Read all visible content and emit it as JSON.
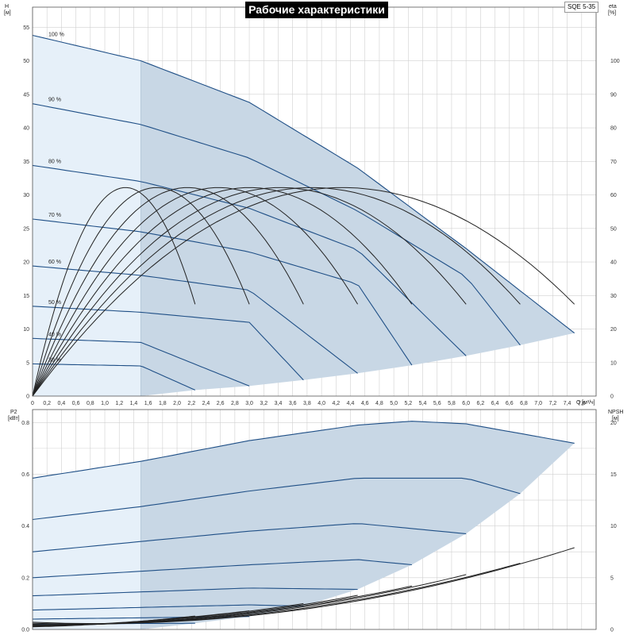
{
  "title": "Рабочие характеристики",
  "model": "SQE 5-35",
  "axes": {
    "h_label": "H",
    "h_unit": "[м]",
    "eta_label": "eta",
    "eta_unit": "[%]",
    "q_label": "Q",
    "q_unit": "[м³/ч]",
    "p2_label": "P2",
    "p2_unit": "[кВт]",
    "npsh_label": "NPSH",
    "npsh_unit": "[м]"
  },
  "colors": {
    "curve": "#1f4f86",
    "envelope": "#c8d7e5",
    "lowflow": "#e6f0f9",
    "grid": "#d0d0d0",
    "eta_curve": "#222222"
  },
  "chart_data": [
    {
      "type": "line",
      "name": "QH",
      "xlabel": "Q [м³/ч]",
      "ylabel": "H [м]",
      "y2label": "eta [%]",
      "xlim": [
        0,
        7.8
      ],
      "ylim": [
        0,
        58
      ],
      "y2lim": [
        0,
        116
      ],
      "x_ticks": [
        "0",
        "0,2",
        "0,4",
        "0,6",
        "0,8",
        "1,0",
        "1,2",
        "1,4",
        "1,6",
        "1,8",
        "2,0",
        "2,2",
        "2,4",
        "2,6",
        "2,8",
        "3,0",
        "3,2",
        "3,4",
        "3,6",
        "3,8",
        "4,0",
        "4,2",
        "4,4",
        "4,6",
        "4,8",
        "5,0",
        "5,2",
        "5,4",
        "5,6",
        "5,8",
        "6,0",
        "6,2",
        "6,4",
        "6,6",
        "6,8",
        "7,0",
        "7,2",
        "7,4",
        "7,6"
      ],
      "y_ticks": [
        "0",
        "5",
        "10",
        "15",
        "20",
        "25",
        "30",
        "35",
        "40",
        "45",
        "50",
        "55"
      ],
      "y2_ticks": [
        "0",
        "10",
        "20",
        "30",
        "40",
        "50",
        "60",
        "70",
        "80",
        "90",
        "100"
      ],
      "grid": true,
      "series": [
        {
          "name": "100 %",
          "x": [
            0,
            1.5,
            3.0,
            4.5,
            6.0,
            7.5
          ],
          "y": [
            53.8,
            50.0,
            43.8,
            34.0,
            22.0,
            9.4
          ]
        },
        {
          "name": "90 %",
          "x": [
            0,
            1.5,
            3.0,
            4.5,
            6.0,
            6.75
          ],
          "y": [
            43.6,
            40.5,
            35.5,
            27.6,
            17.8,
            7.6
          ]
        },
        {
          "name": "80 %",
          "x": [
            0,
            1.5,
            3.0,
            4.5,
            6.0
          ],
          "y": [
            34.4,
            32.0,
            28.0,
            21.8,
            6.0
          ]
        },
        {
          "name": "70 %",
          "x": [
            0,
            1.5,
            3.0,
            4.5,
            5.25
          ],
          "y": [
            26.4,
            24.5,
            21.5,
            16.7,
            4.6
          ]
        },
        {
          "name": "60 %",
          "x": [
            0,
            1.5,
            3.0,
            4.5
          ],
          "y": [
            19.4,
            18.0,
            15.8,
            3.4
          ]
        },
        {
          "name": "50 %",
          "x": [
            0,
            1.5,
            3.0,
            3.75
          ],
          "y": [
            13.4,
            12.5,
            11.0,
            2.4
          ]
        },
        {
          "name": "40 %",
          "x": [
            0,
            1.5,
            3.0
          ],
          "y": [
            8.6,
            8.0,
            1.5
          ]
        },
        {
          "name": "30 %",
          "x": [
            0,
            1.5,
            2.25
          ],
          "y": [
            4.8,
            4.5,
            0.9
          ]
        }
      ],
      "eta_series": [
        {
          "n": "100 %",
          "x": [
            0,
            3.75,
            7.5
          ],
          "y": [
            0,
            61.2,
            27.4
          ]
        },
        {
          "n": "90 %",
          "x": [
            0,
            3.375,
            6.75
          ],
          "y": [
            0,
            61.2,
            27.4
          ]
        },
        {
          "n": "80 %",
          "x": [
            0,
            3.0,
            6.0
          ],
          "y": [
            0,
            61.2,
            27.4
          ]
        },
        {
          "n": "70 %",
          "x": [
            0,
            2.625,
            5.25
          ],
          "y": [
            0,
            61.2,
            27.4
          ]
        },
        {
          "n": "60 %",
          "x": [
            0,
            2.25,
            4.5
          ],
          "y": [
            0,
            61.2,
            27.4
          ]
        },
        {
          "n": "50 %",
          "x": [
            0,
            1.875,
            3.75
          ],
          "y": [
            0,
            61.2,
            27.4
          ]
        },
        {
          "n": "40 %",
          "x": [
            0,
            1.5,
            3.0
          ],
          "y": [
            0,
            61.2,
            27.4
          ]
        },
        {
          "n": "30 %",
          "x": [
            0,
            1.125,
            2.25
          ],
          "y": [
            0,
            61.2,
            27.4
          ]
        }
      ],
      "lowflow_limit_q": 1.5
    },
    {
      "type": "line",
      "name": "P2/NPSH",
      "xlabel": "Q [м³/ч]",
      "ylabel": "P2 [кВт]",
      "y2label": "NPSH [м]",
      "xlim": [
        0,
        7.8
      ],
      "ylim": [
        0,
        0.85
      ],
      "y2lim": [
        0,
        21.25
      ],
      "y_ticks": [
        "0.0",
        "0.2",
        "0.4",
        "0.6",
        "0.8"
      ],
      "y2_ticks": [
        "0",
        "5",
        "10",
        "15",
        "20"
      ],
      "grid": true,
      "series": [
        {
          "name": "100 %",
          "x": [
            0,
            1.5,
            3.0,
            4.5,
            5.25,
            6.0,
            7.5
          ],
          "y": [
            0.585,
            0.65,
            0.73,
            0.79,
            0.805,
            0.795,
            0.72
          ]
        },
        {
          "name": "90 %",
          "x": [
            0,
            1.5,
            3.0,
            4.5,
            6.0,
            6.75
          ],
          "y": [
            0.425,
            0.475,
            0.535,
            0.585,
            0.585,
            0.525
          ]
        },
        {
          "name": "80 %",
          "x": [
            0,
            1.5,
            3.0,
            4.5,
            6.0
          ],
          "y": [
            0.3,
            0.34,
            0.38,
            0.41,
            0.37
          ]
        },
        {
          "name": "70 %",
          "x": [
            0,
            1.5,
            3.0,
            4.5,
            5.25
          ],
          "y": [
            0.2,
            0.225,
            0.25,
            0.27,
            0.25
          ]
        },
        {
          "name": "60 %",
          "x": [
            0,
            1.5,
            3.0,
            4.5
          ],
          "y": [
            0.13,
            0.145,
            0.16,
            0.155
          ]
        },
        {
          "name": "50 %",
          "x": [
            0,
            1.5,
            3.0,
            3.75
          ],
          "y": [
            0.075,
            0.085,
            0.095,
            0.09
          ]
        },
        {
          "name": "40 %",
          "x": [
            0,
            1.5,
            3.0
          ],
          "y": [
            0.04,
            0.045,
            0.05
          ]
        },
        {
          "name": "30 %",
          "x": [
            0,
            1.5,
            2.25
          ],
          "y": [
            0.02,
            0.023,
            0.024
          ]
        }
      ],
      "npsh_series": [
        {
          "n": "100 %",
          "x": [
            0,
            3.75,
            7.5
          ],
          "y": [
            0.7,
            1.95,
            7.9
          ]
        },
        {
          "n": "90 %",
          "x": [
            0,
            3.375,
            6.75
          ],
          "y": [
            0.6,
            1.7,
            6.4
          ]
        },
        {
          "n": "80 %",
          "x": [
            0,
            3.0,
            6.0
          ],
          "y": [
            0.5,
            1.5,
            5.3
          ]
        },
        {
          "n": "70 %",
          "x": [
            0,
            2.625,
            5.25
          ],
          "y": [
            0.45,
            1.3,
            4.2
          ]
        },
        {
          "n": "60 %",
          "x": [
            0,
            2.25,
            4.5
          ],
          "y": [
            0.4,
            1.1,
            3.3
          ]
        },
        {
          "n": "50 %",
          "x": [
            0,
            1.875,
            3.75
          ],
          "y": [
            0.35,
            0.95,
            2.5
          ]
        },
        {
          "n": "40 %",
          "x": [
            0,
            1.5,
            3.0
          ],
          "y": [
            0.3,
            0.8,
            1.8
          ]
        },
        {
          "n": "30 %",
          "x": [
            0,
            1.125,
            2.25
          ],
          "y": [
            0.25,
            0.6,
            1.3
          ]
        }
      ]
    }
  ]
}
